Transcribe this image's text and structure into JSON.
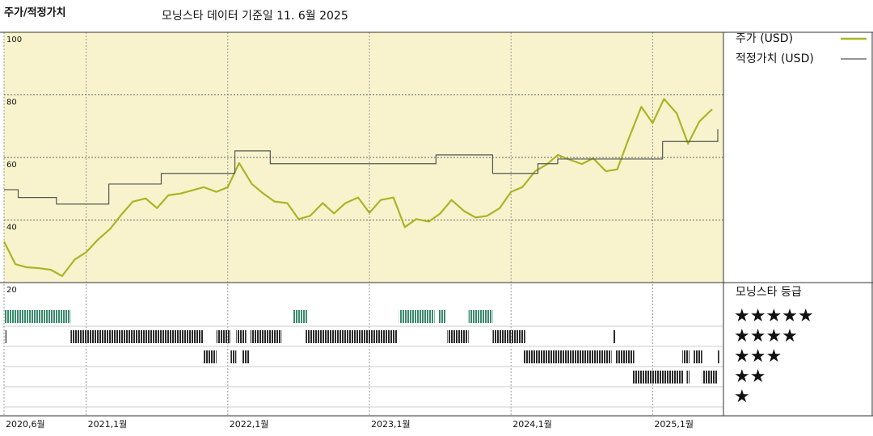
{
  "chart_data": {
    "type": "line",
    "title": "주가/적정가치",
    "subtitle": "모닝스타 데이터 기준일 11. 6월 2025",
    "xlim": [
      2020.42,
      2025.5
    ],
    "xticks": [
      {
        "value": 2020.42,
        "label": "2020,6월"
      },
      {
        "value": 2021,
        "label": "2021,1월"
      },
      {
        "value": 2022,
        "label": "2022,1월"
      },
      {
        "value": 2023,
        "label": "2023,1월"
      },
      {
        "value": 2024,
        "label": "2024,1월"
      },
      {
        "value": 2025,
        "label": "2025,1월"
      }
    ],
    "ylim": [
      20,
      100
    ],
    "yticks": [
      20,
      40,
      60,
      80,
      100
    ],
    "grid": true,
    "background": "#f8f3cc",
    "series": [
      {
        "name": "주가 (USD)",
        "color": "#a9b526",
        "x": [
          2020.42,
          2020.5,
          2020.58,
          2020.67,
          2020.75,
          2020.83,
          2020.92,
          2021,
          2021.08,
          2021.17,
          2021.25,
          2021.33,
          2021.42,
          2021.5,
          2021.58,
          2021.67,
          2021.75,
          2021.83,
          2021.92,
          2022,
          2022.08,
          2022.17,
          2022.25,
          2022.33,
          2022.42,
          2022.5,
          2022.58,
          2022.67,
          2022.75,
          2022.83,
          2022.92,
          2023,
          2023.08,
          2023.17,
          2023.25,
          2023.33,
          2023.42,
          2023.5,
          2023.58,
          2023.67,
          2023.75,
          2023.83,
          2023.92,
          2024,
          2024.08,
          2024.17,
          2024.25,
          2024.33,
          2024.42,
          2024.5,
          2024.58,
          2024.67,
          2024.75,
          2024.83,
          2024.92,
          2025,
          2025.08,
          2025.17,
          2025.25,
          2025.33,
          2025.42
        ],
        "values": [
          33.1,
          25.9,
          24.9,
          24.6,
          24.1,
          22.1,
          27.4,
          29.7,
          33.6,
          37.2,
          41.8,
          45.9,
          46.9,
          43.8,
          47.9,
          48.5,
          49.5,
          50.5,
          49,
          50.5,
          58.2,
          51.5,
          48.5,
          45.9,
          45.4,
          40.3,
          41.3,
          45.4,
          42.1,
          45.4,
          47.2,
          42.3,
          46.4,
          47.2,
          37.7,
          40.3,
          39.5,
          42.1,
          46.4,
          42.8,
          40.8,
          41.3,
          43.8,
          49,
          50.5,
          55.6,
          57.7,
          60.8,
          59.2,
          57.9,
          59.7,
          55.6,
          56.2,
          65.9,
          76.2,
          71,
          78.7,
          74.1,
          64.4,
          71.5,
          75.4
        ]
      },
      {
        "name": "적정가치 (USD)",
        "color": "#555555",
        "step": "post",
        "x": [
          2020.42,
          2020.52,
          2020.79,
          2021.16,
          2021.53,
          2022.05,
          2022.3,
          2023.47,
          2023.87,
          2024.19,
          2024.33,
          2025.07,
          2025.46
        ],
        "values": [
          49.7,
          47.2,
          45.1,
          51.5,
          54.9,
          62.1,
          58,
          60.8,
          54.9,
          58,
          59.5,
          65.1,
          69
        ]
      }
    ],
    "rating": {
      "title": "모닝스타 등급",
      "levels": [
        5,
        4,
        3,
        2,
        1
      ],
      "labels": [
        "★★★★★",
        "★★★★",
        "★★★",
        "★★",
        "★"
      ],
      "colors": [
        "#3a8a6c",
        "#2a2a2a",
        "#2a2a2a",
        "#2a2a2a",
        "#2a2a2a"
      ],
      "periods": [
        {
          "start": 2020.42,
          "end": 2020.89,
          "stars": 5
        },
        {
          "start": 2022.46,
          "end": 2022.56,
          "stars": 5
        },
        {
          "start": 2023.21,
          "end": 2023.46,
          "stars": 5
        },
        {
          "start": 2023.49,
          "end": 2023.54,
          "stars": 5
        },
        {
          "start": 2023.7,
          "end": 2023.87,
          "stars": 5
        },
        {
          "start": 2020.43,
          "end": 2020.44,
          "stars": 4
        },
        {
          "start": 2020.89,
          "end": 2021.83,
          "stars": 4
        },
        {
          "start": 2021.92,
          "end": 2022.02,
          "stars": 4
        },
        {
          "start": 2022.06,
          "end": 2022.13,
          "stars": 4
        },
        {
          "start": 2022.16,
          "end": 2022.38,
          "stars": 4
        },
        {
          "start": 2022.55,
          "end": 2023.2,
          "stars": 4
        },
        {
          "start": 2023.55,
          "end": 2023.7,
          "stars": 4
        },
        {
          "start": 2023.87,
          "end": 2024.1,
          "stars": 4
        },
        {
          "start": 2024.72,
          "end": 2024.74,
          "stars": 4
        },
        {
          "start": 2021.83,
          "end": 2021.92,
          "stars": 3
        },
        {
          "start": 2022.02,
          "end": 2022.06,
          "stars": 3
        },
        {
          "start": 2022.1,
          "end": 2022.15,
          "stars": 3
        },
        {
          "start": 2024.09,
          "end": 2024.71,
          "stars": 3
        },
        {
          "start": 2024.74,
          "end": 2024.87,
          "stars": 3
        },
        {
          "start": 2025.21,
          "end": 2025.26,
          "stars": 3
        },
        {
          "start": 2025.29,
          "end": 2025.35,
          "stars": 3
        },
        {
          "start": 2025.46,
          "end": 2025.47,
          "stars": 3
        },
        {
          "start": 2024.86,
          "end": 2025.22,
          "stars": 2
        },
        {
          "start": 2025.24,
          "end": 2025.26,
          "stars": 2
        },
        {
          "start": 2025.35,
          "end": 2025.46,
          "stars": 2
        }
      ]
    }
  }
}
